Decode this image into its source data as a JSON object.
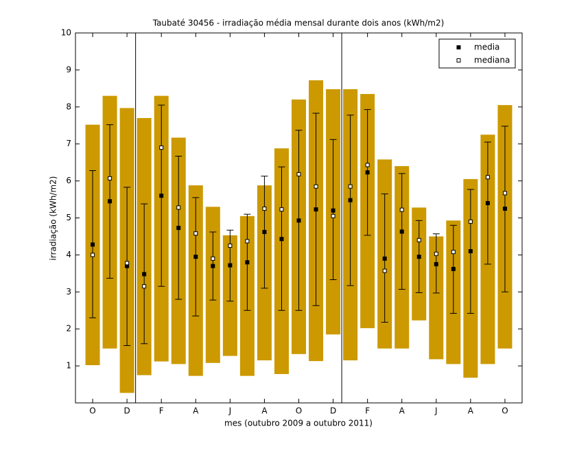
{
  "chart_data": {
    "type": "range-bar",
    "title": "Taubaté 30456 - irradiação média mensal durante dois anos (kWh/m2)",
    "x_label": "mes (outubro 2009 a outubro 2011)",
    "y_label": "irradiação (kWh/m2)",
    "categories": [
      "O",
      null,
      "D",
      null,
      "F",
      null,
      "A",
      null,
      "J",
      null,
      "A",
      null,
      "O",
      null,
      "D",
      null,
      "F",
      null,
      "A",
      null,
      "J",
      null,
      "A",
      null,
      "O"
    ],
    "ranges": {
      "color": "#cc9900",
      "low": [
        1.02,
        1.47,
        0.27,
        0.75,
        1.12,
        1.05,
        0.73,
        1.08,
        1.27,
        0.73,
        1.15,
        0.78,
        1.32,
        1.13,
        1.85,
        1.15,
        2.02,
        1.47,
        1.47,
        2.23,
        1.18,
        1.05,
        0.68,
        1.05,
        1.47
      ],
      "high": [
        7.52,
        8.3,
        7.97,
        7.7,
        8.3,
        7.17,
        5.88,
        5.3,
        4.53,
        5.05,
        5.88,
        6.88,
        8.2,
        8.72,
        8.48,
        8.48,
        8.35,
        6.58,
        6.4,
        5.28,
        4.5,
        4.93,
        6.05,
        7.25,
        8.05
      ]
    },
    "error_bars": {
      "color": "#000000",
      "low": [
        2.3,
        3.37,
        1.55,
        1.6,
        3.15,
        2.8,
        2.35,
        2.78,
        2.75,
        2.5,
        3.1,
        2.5,
        2.5,
        2.63,
        3.33,
        3.17,
        4.53,
        2.18,
        3.07,
        2.98,
        2.97,
        2.42,
        2.42,
        3.75,
        3.0
      ],
      "high": [
        6.28,
        7.52,
        5.83,
        5.38,
        8.05,
        6.67,
        5.55,
        4.62,
        4.67,
        5.1,
        6.13,
        6.38,
        7.37,
        7.83,
        7.12,
        7.78,
        7.93,
        5.65,
        6.2,
        4.93,
        4.57,
        4.8,
        5.77,
        7.05,
        7.48
      ]
    },
    "series": [
      {
        "name": "media",
        "color": "#000000",
        "fill": "#000000",
        "values": [
          4.28,
          5.45,
          3.7,
          3.48,
          5.6,
          4.73,
          3.95,
          3.7,
          3.72,
          3.8,
          4.62,
          4.43,
          4.93,
          5.23,
          5.2,
          5.48,
          6.23,
          3.9,
          4.63,
          3.95,
          3.75,
          3.62,
          4.1,
          5.4,
          5.25
        ]
      },
      {
        "name": "mediana",
        "color": "#000000",
        "fill": "#ffffff",
        "values": [
          4.0,
          6.07,
          3.78,
          3.15,
          6.9,
          5.28,
          4.58,
          3.9,
          4.25,
          4.37,
          5.25,
          5.23,
          6.18,
          5.85,
          5.05,
          5.85,
          6.43,
          3.57,
          5.22,
          4.4,
          4.03,
          4.08,
          4.9,
          6.1,
          5.67
        ]
      }
    ],
    "ylim": [
      0,
      10
    ],
    "yticks": [
      1,
      2,
      3,
      4,
      5,
      6,
      7,
      8,
      9,
      10
    ],
    "legend": "upper right"
  }
}
